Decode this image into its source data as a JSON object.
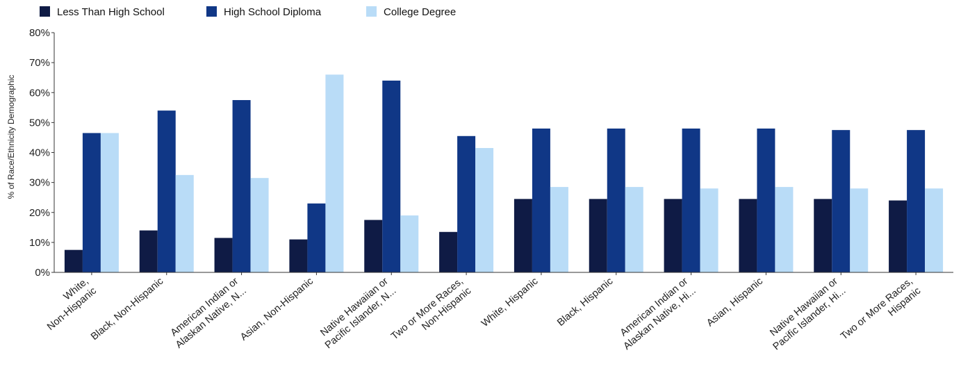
{
  "chart_data": {
    "type": "bar",
    "title": "",
    "xlabel": "",
    "ylabel": "% of Race/Ethnicity Demographic",
    "ylim": [
      0,
      80
    ],
    "yticks": [
      "0%",
      "10%",
      "20%",
      "30%",
      "40%",
      "50%",
      "60%",
      "70%",
      "80%"
    ],
    "grid": false,
    "legend_position": "top-left",
    "categories": [
      [
        "White,",
        "Non-Hispanic"
      ],
      [
        "Black, Non-Hispanic"
      ],
      [
        "American Indian or",
        "Alaskan Native, N..."
      ],
      [
        "Asian, Non-Hispanic"
      ],
      [
        "Native Hawaiian or",
        "Pacific Islander, N..."
      ],
      [
        "Two or More Races,",
        "Non-Hispanic"
      ],
      [
        "White, Hispanic"
      ],
      [
        "Black, Hispanic"
      ],
      [
        "American Indian or",
        "Alaskan Native, Hi..."
      ],
      [
        "Asian, Hispanic"
      ],
      [
        "Native Hawaiian or",
        "Pacific Islander, Hi..."
      ],
      [
        "Two or More Races,",
        "Hispanic"
      ]
    ],
    "series": [
      {
        "name": "Less Than High School",
        "color": "#0f1b45",
        "values": [
          7.5,
          14,
          11.5,
          11,
          17.5,
          13.5,
          24.5,
          24.5,
          24.5,
          24.5,
          24.5,
          24
        ]
      },
      {
        "name": "High School Diploma",
        "color": "#103786",
        "values": [
          46.5,
          54,
          57.5,
          23,
          64,
          45.5,
          48,
          48,
          48,
          48,
          47.5,
          47.5
        ]
      },
      {
        "name": "College Degree",
        "color": "#b9dcf7",
        "values": [
          46.5,
          32.5,
          31.5,
          66,
          19,
          41.5,
          28.5,
          28.5,
          28,
          28.5,
          28,
          28
        ]
      }
    ]
  }
}
